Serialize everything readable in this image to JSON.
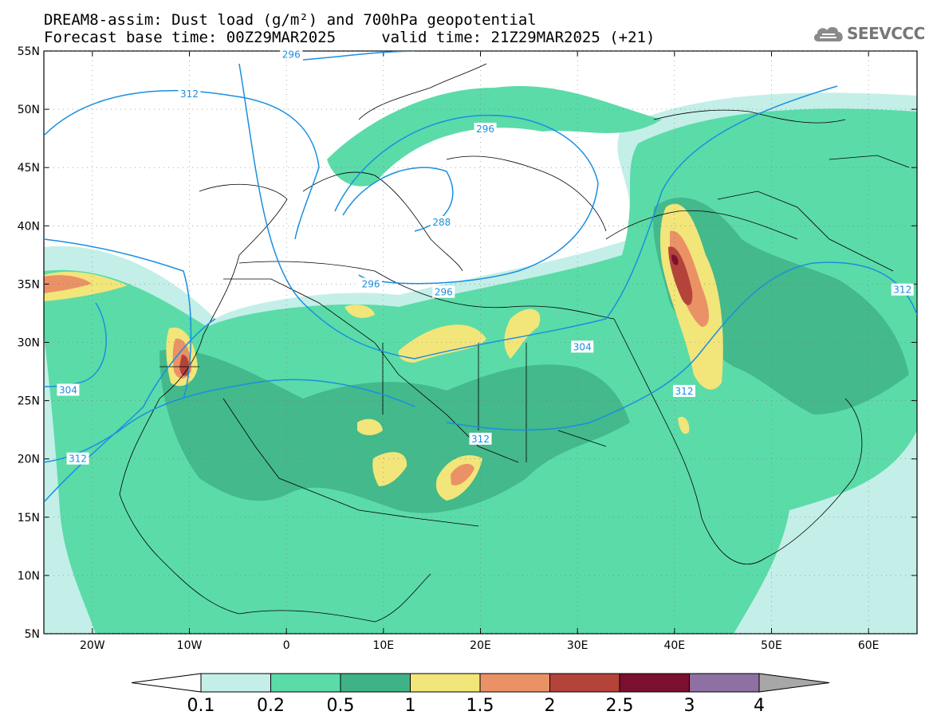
{
  "title": {
    "line1": "DREAM8-assim: Dust load (g/m²) and 700hPa geopotential",
    "line2": "Forecast base time: 00Z29MAR2025     valid time: 21Z29MAR2025 (+21)"
  },
  "logo": {
    "text": "SEEVCCC",
    "icon": "cloud-icon"
  },
  "map": {
    "lon_range": [
      -25,
      65
    ],
    "lat_range": [
      5,
      55
    ],
    "lon_ticks": [
      {
        "value": -20,
        "label": "20W"
      },
      {
        "value": -10,
        "label": "10W"
      },
      {
        "value": 0,
        "label": "0"
      },
      {
        "value": 10,
        "label": "10E"
      },
      {
        "value": 20,
        "label": "20E"
      },
      {
        "value": 30,
        "label": "30E"
      },
      {
        "value": 40,
        "label": "40E"
      },
      {
        "value": 50,
        "label": "50E"
      },
      {
        "value": 60,
        "label": "60E"
      }
    ],
    "lat_ticks": [
      {
        "value": 55,
        "label": "55N"
      },
      {
        "value": 50,
        "label": "50N"
      },
      {
        "value": 45,
        "label": "45N"
      },
      {
        "value": 40,
        "label": "40N"
      },
      {
        "value": 35,
        "label": "35N"
      },
      {
        "value": 30,
        "label": "30N"
      },
      {
        "value": 25,
        "label": "25N"
      },
      {
        "value": 20,
        "label": "20N"
      },
      {
        "value": 15,
        "label": "15N"
      },
      {
        "value": 10,
        "label": "10N"
      },
      {
        "value": 5,
        "label": "5N"
      }
    ],
    "contour_color": "#1a8fe0",
    "contour_labels": [
      {
        "text": "296",
        "lon": 0.5,
        "lat": 54.7
      },
      {
        "text": "312",
        "lon": -10,
        "lat": 51.3
      },
      {
        "text": "296",
        "lon": 20.5,
        "lat": 48.3
      },
      {
        "text": "288",
        "lon": 16,
        "lat": 40.3
      },
      {
        "text": "296",
        "lon": 8.7,
        "lat": 35.0
      },
      {
        "text": "296",
        "lon": 16.2,
        "lat": 34.3
      },
      {
        "text": "304",
        "lon": 30.5,
        "lat": 29.6
      },
      {
        "text": "312",
        "lon": 41,
        "lat": 25.8
      },
      {
        "text": "312",
        "lon": 20,
        "lat": 21.7
      },
      {
        "text": "304",
        "lon": -22.5,
        "lat": 25.9
      },
      {
        "text": "312",
        "lon": -21.5,
        "lat": 20
      },
      {
        "text": "312",
        "lon": 63.5,
        "lat": 34.5
      }
    ]
  },
  "colorbar": {
    "labels": [
      "0.1",
      "0.2",
      "0.5",
      "1",
      "1.5",
      "2",
      "2.5",
      "3",
      "4"
    ],
    "colors": [
      "#c3efe8",
      "#5bdba8",
      "#3fb387",
      "#f2e57a",
      "#ea9266",
      "#b4433a",
      "#7b0f2f",
      "#8e70a3"
    ],
    "low_color": "#ffffff",
    "high_color": "#a7a7a7"
  }
}
